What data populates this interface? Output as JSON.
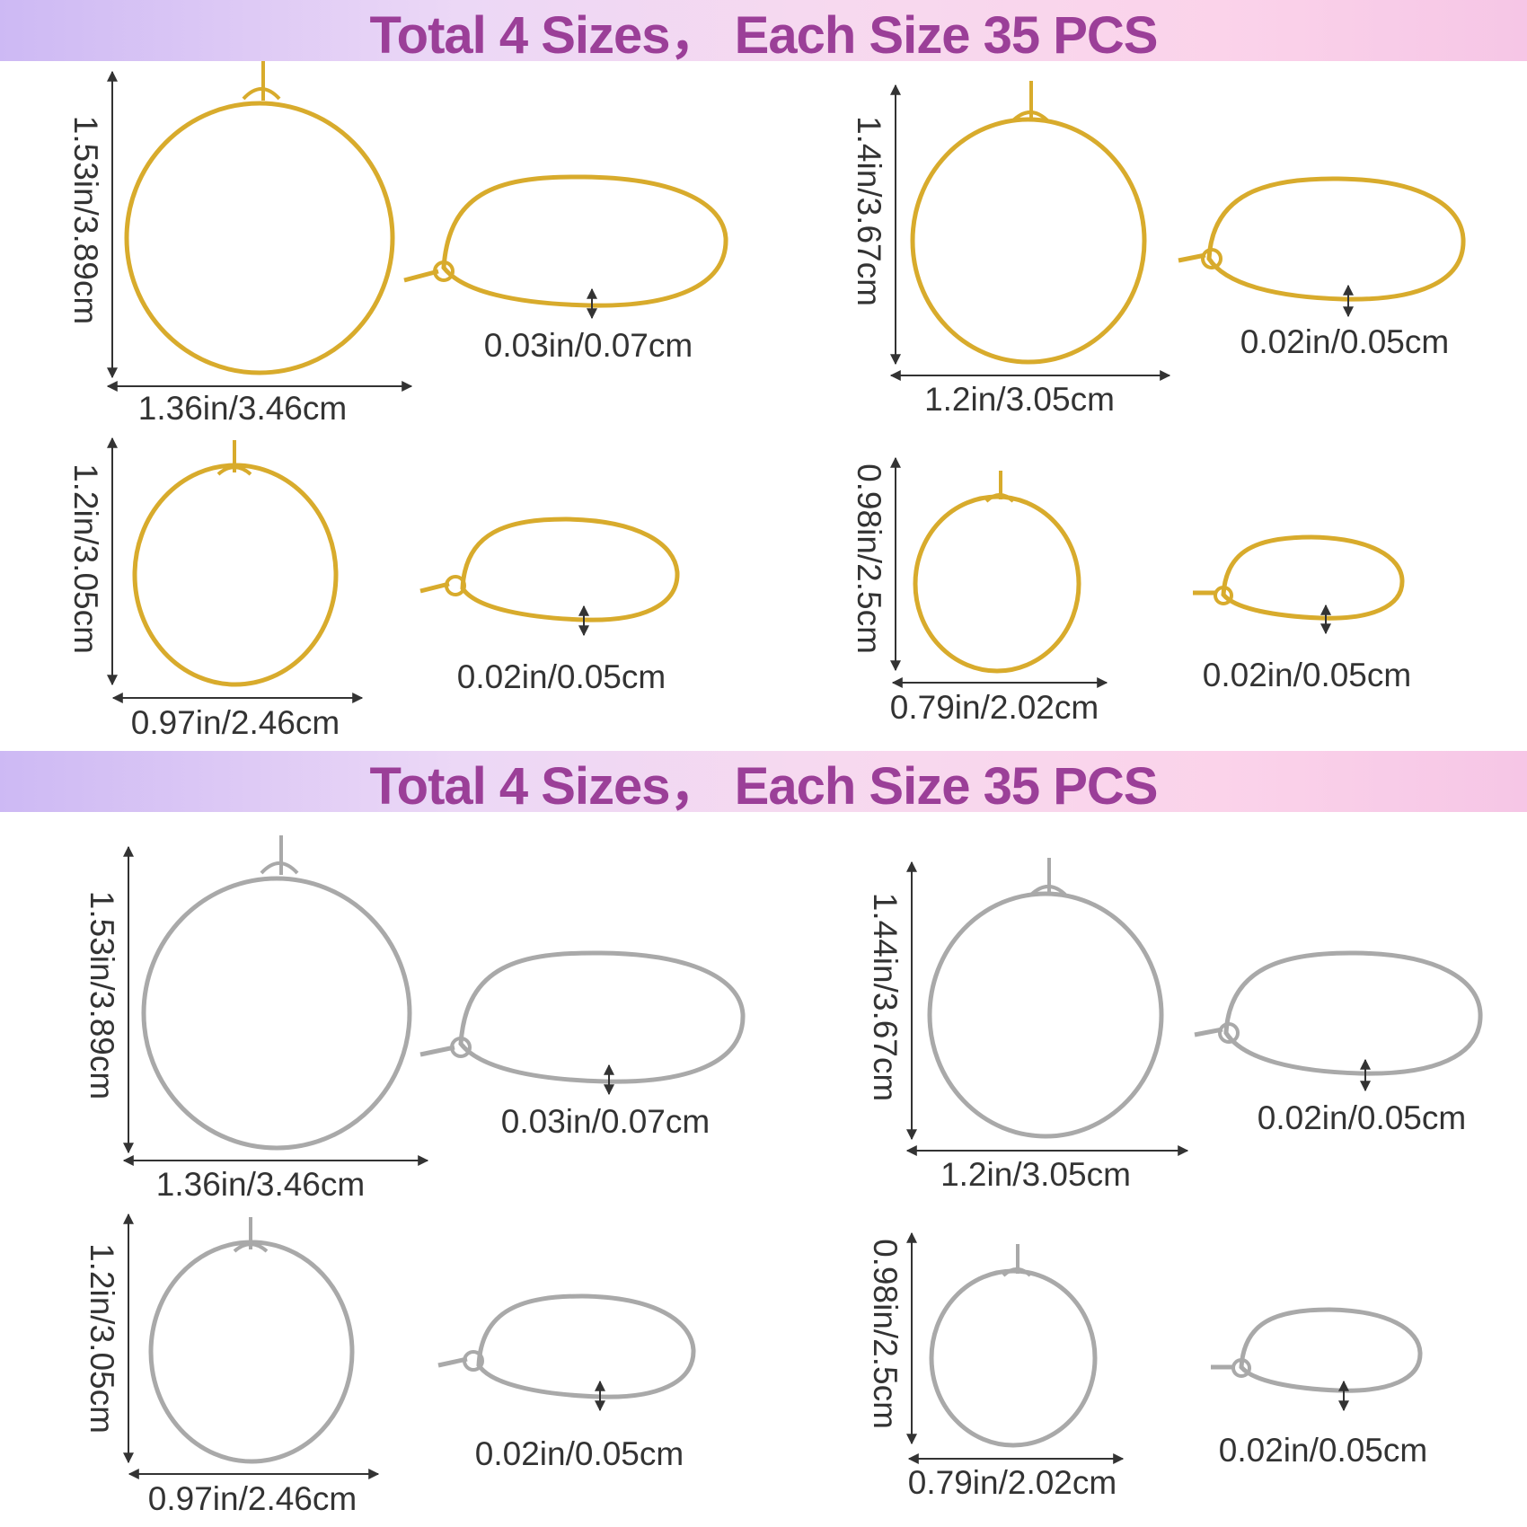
{
  "banners": [
    {
      "title": "Total 4 Sizes，  Each Size 35 PCS"
    },
    {
      "title": "Total 4 Sizes，  Each Size 35 PCS"
    }
  ],
  "colors": {
    "gold": "#d8ab2c",
    "silver": "#a9a9a9",
    "title": "#9b3f98",
    "text": "#333333"
  },
  "gold": {
    "size1": {
      "height": "1.53in/3.89cm",
      "width": "1.36in/3.46cm",
      "thickness": "0.03in/0.07cm"
    },
    "size2": {
      "height": "1.4in/3.67cm",
      "width": "1.2in/3.05cm",
      "thickness": "0.02in/0.05cm"
    },
    "size3": {
      "height": "1.2in/3.05cm",
      "width": "0.97in/2.46cm",
      "thickness": "0.02in/0.05cm"
    },
    "size4": {
      "height": "0.98in/2.5cm",
      "width": "0.79in/2.02cm",
      "thickness": "0.02in/0.05cm"
    }
  },
  "silver": {
    "size1": {
      "height": "1.53in/3.89cm",
      "width": "1.36in/3.46cm",
      "thickness": "0.03in/0.07cm"
    },
    "size2": {
      "height": "1.44in/3.67cm",
      "width": "1.2in/3.05cm",
      "thickness": "0.02in/0.05cm"
    },
    "size3": {
      "height": "1.2in/3.05cm",
      "width": "0.97in/2.46cm",
      "thickness": "0.02in/0.05cm"
    },
    "size4": {
      "height": "0.98in/2.5cm",
      "width": "0.79in/2.02cm",
      "thickness": "0.02in/0.05cm"
    }
  }
}
